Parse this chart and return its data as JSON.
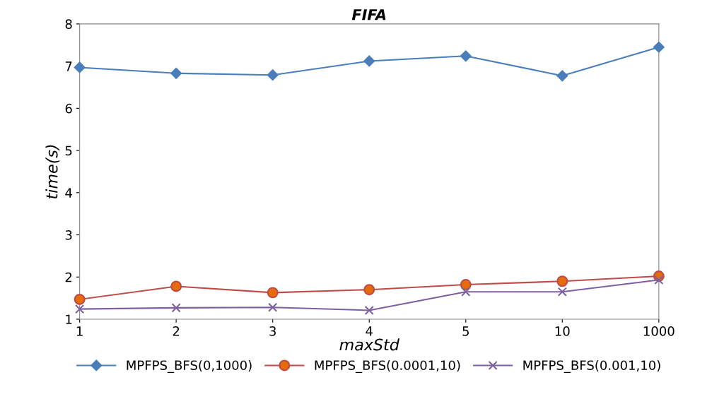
{
  "chart_data": {
    "type": "line",
    "title": "FIFA",
    "xlabel": "maxStd",
    "ylabel": "time(s)",
    "categories": [
      "1",
      "2",
      "3",
      "4",
      "5",
      "10",
      "1000"
    ],
    "series": [
      {
        "name": "MPFPS_BFS(0,1000)",
        "color": "#4a7ebb",
        "marker": "diamond",
        "values": [
          6.97,
          6.83,
          6.79,
          7.12,
          7.24,
          6.77,
          7.45
        ]
      },
      {
        "name": "MPFPS_BFS(0.0001,10)",
        "color": "#be4b48",
        "marker": "circle",
        "values": [
          1.47,
          1.78,
          1.63,
          1.7,
          1.82,
          1.9,
          2.02
        ]
      },
      {
        "name": "MPFPS_BFS(0.001,10)",
        "color": "#7d60a0",
        "marker": "cross",
        "values": [
          1.24,
          1.27,
          1.28,
          1.21,
          1.65,
          1.65,
          1.93
        ]
      }
    ],
    "ylim": [
      1,
      8
    ],
    "yticks": [
      1,
      2,
      3,
      4,
      5,
      6,
      7,
      8
    ],
    "grid": false,
    "legend": "bottom",
    "line_style": "solid"
  }
}
